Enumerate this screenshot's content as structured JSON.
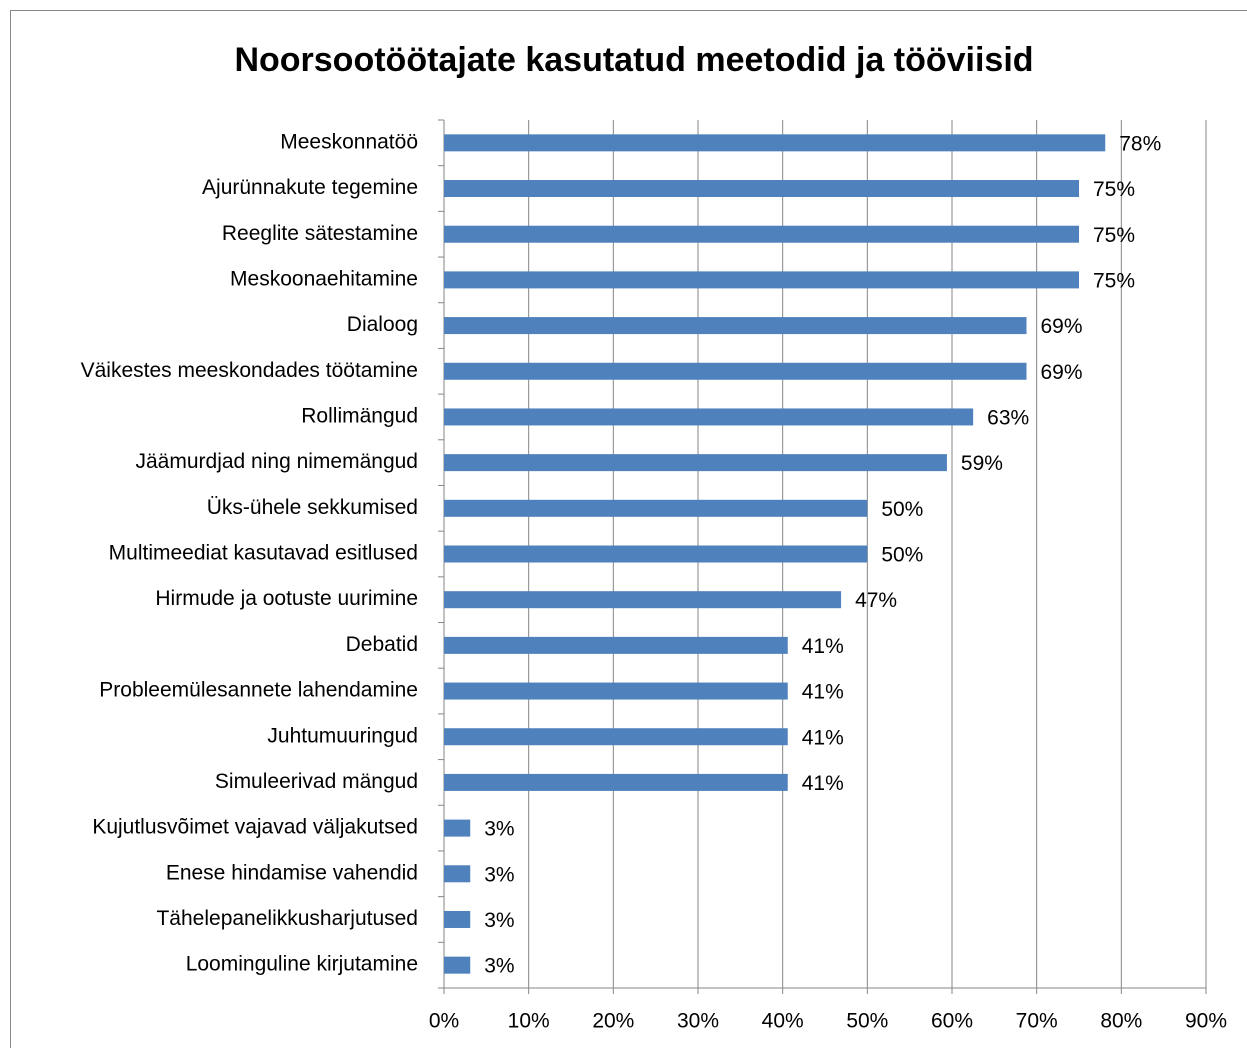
{
  "chart_data": {
    "type": "bar",
    "orientation": "horizontal",
    "title": "Noorsootöötajate kasutatud meetodid ja tööviisid",
    "categories": [
      "Meeskonnatöö",
      "Ajurünnakute tegemine",
      "Reeglite sätestamine",
      "Meskoonaehitamine",
      "Dialoog",
      "Väikestes meeskondades töötamine",
      "Rollimängud",
      "Jäämurdjad ning nimemängud",
      "Üks-ühele sekkumised",
      "Multimeediat kasutavad esitlused",
      "Hirmude ja ootuste uurimine",
      "Debatid",
      "Probleemülesannete lahendamine",
      "Juhtumuuringud",
      "Simuleerivad mängud",
      "Kujutlusvõimet vajavad väljakutsed",
      "Enese hindamise vahendid",
      "Tähelepanelikkusharjutused",
      "Loominguline kirjutamine"
    ],
    "values": [
      78.1,
      75,
      75,
      75,
      68.8,
      68.8,
      62.5,
      59.4,
      50,
      50,
      46.9,
      40.6,
      40.6,
      40.6,
      40.6,
      3.1,
      3.1,
      3.1,
      3.1
    ],
    "value_labels": [
      "78%",
      "75%",
      "75%",
      "75%",
      "69%",
      "69%",
      "63%",
      "59%",
      "50%",
      "50%",
      "47%",
      "41%",
      "41%",
      "41%",
      "41%",
      "3%",
      "3%",
      "3%",
      "3%"
    ],
    "color": "#4f81bd",
    "xlim": [
      0,
      90
    ],
    "xticks": [
      {
        "value": 0,
        "label": "0%"
      },
      {
        "value": 10,
        "label": "10%"
      },
      {
        "value": 20,
        "label": "20%"
      },
      {
        "value": 30,
        "label": "30%"
      },
      {
        "value": 40,
        "label": "40%"
      },
      {
        "value": 50,
        "label": "50%"
      },
      {
        "value": 60,
        "label": "60%"
      },
      {
        "value": 70,
        "label": "70%"
      },
      {
        "value": 80,
        "label": "80%"
      },
      {
        "value": 90,
        "label": "90%"
      }
    ],
    "grid": true
  }
}
